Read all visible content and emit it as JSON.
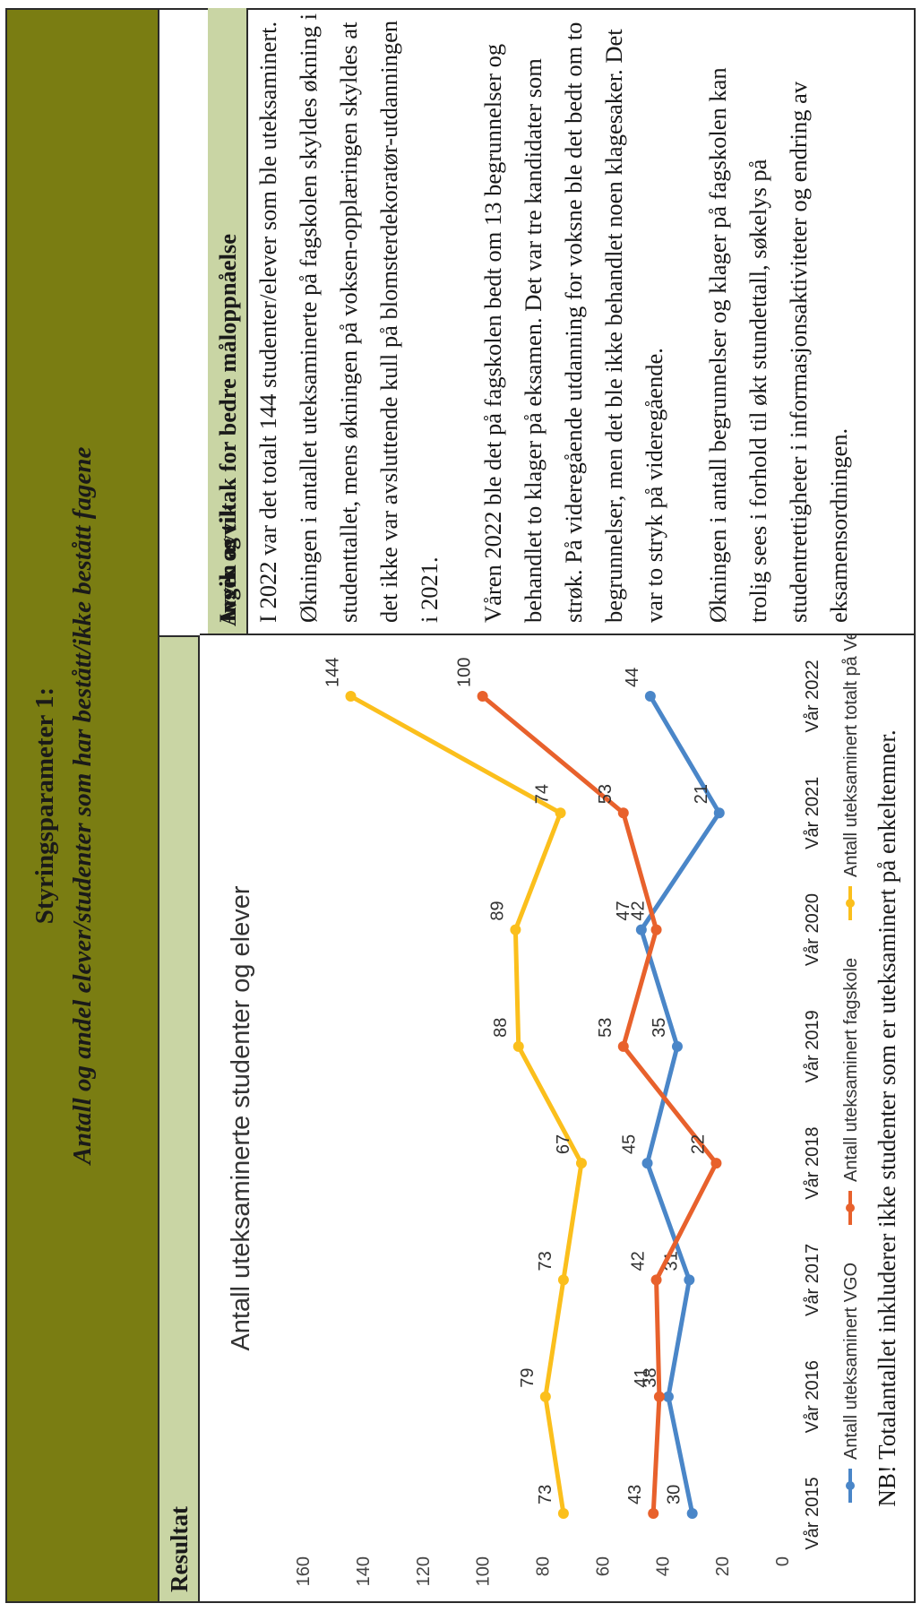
{
  "header": {
    "title": "Styringsparameter 1:",
    "subtitle": "Antall og andel elever/studenter som har bestått/ikke bestått fagene"
  },
  "columns": {
    "left_label": "Resultat",
    "right_label": "Avvik og tiltak for bedre måloppnåelse"
  },
  "chart_data": {
    "type": "line",
    "title": "Antall uteksaminerte studenter og elever",
    "categories": [
      "Vår 2015",
      "Vår 2016",
      "Vår 2017",
      "Vår 2018",
      "Vår 2019",
      "Vår 2020",
      "Vår 2021",
      "Vår 2022"
    ],
    "ylim": [
      0,
      160
    ],
    "yticks": [
      0,
      20,
      40,
      60,
      80,
      100,
      120,
      140,
      160
    ],
    "legend_position": "bottom",
    "series": [
      {
        "name": "Antall uteksaminert VGO",
        "color": "#4a86c8",
        "values": [
          30,
          38,
          31,
          45,
          35,
          47,
          21,
          44
        ]
      },
      {
        "name": "Antall uteksaminert fagskole",
        "color": "#e8612c",
        "values": [
          43,
          41,
          42,
          22,
          53,
          42,
          53,
          100
        ]
      },
      {
        "name": "Antall uteksaminert totalt på Vea",
        "color": "#fbbf1c",
        "values": [
          73,
          79,
          73,
          67,
          88,
          89,
          74,
          144
        ]
      }
    ]
  },
  "note": "NB! Totalantallet inkluderer ikke studenter som er uteksaminert på enkeltemner.",
  "right_text": {
    "heading": "Ingen avvik",
    "p1": "I 2022 var det totalt 144 studenter/elever som ble uteksaminert. Økningen i antallet uteksaminerte på fagskolen skyldes økning i studenttallet, mens økningen på voksen-opplæringen skyldes at det ikke var avsluttende kull på blomsterdekoratør-utdanningen i 2021.",
    "p2": "Våren 2022 ble det på fagskolen bedt om 13 begrunnelser og behandlet to klager på eksamen. Det var tre kandidater som strøk. På videregående utdanning for voksne ble det bedt om to begrunnelser, men det ble ikke behandlet noen klagesaker. Det var to stryk på videregående.",
    "p3": "Økningen i antall begrunnelser og klager på fagskolen kan trolig sees i forhold til økt stundettall, søkelys på studentrettigheter i informasjonsaktiviteter og endring av eksamensordningen."
  }
}
